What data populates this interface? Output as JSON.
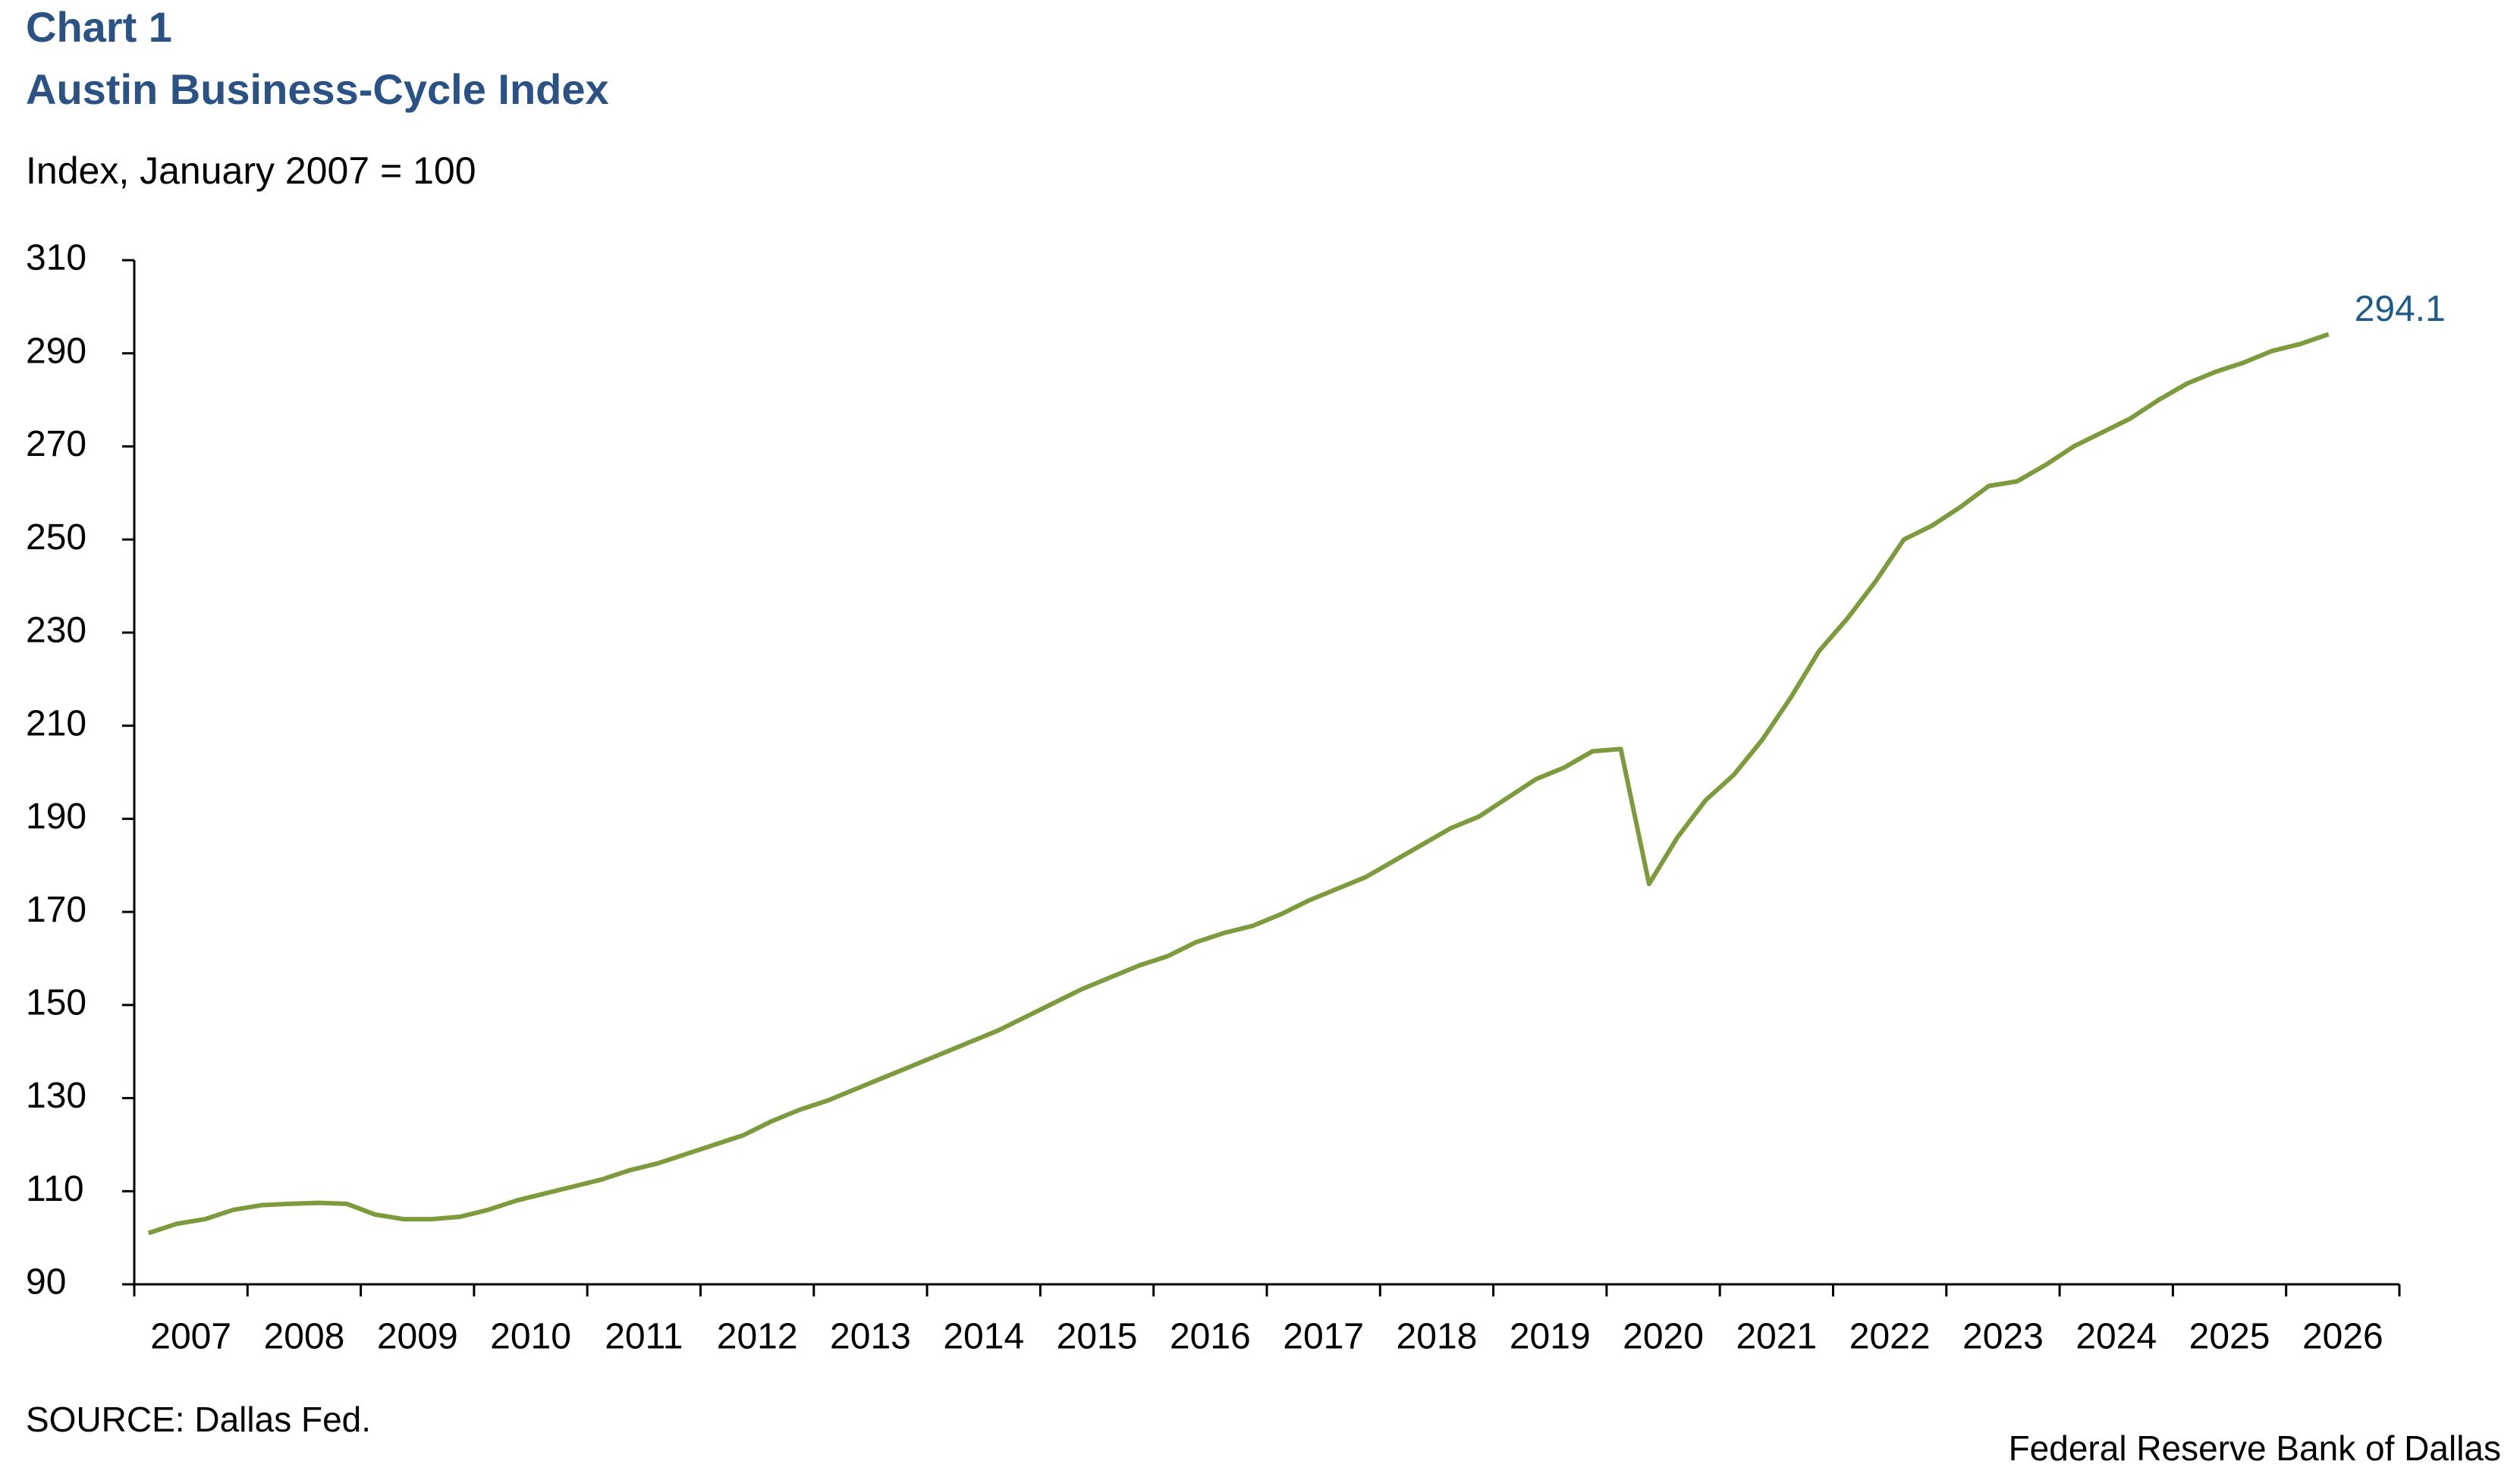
{
  "chart_data": {
    "type": "line",
    "title": "Chart 1",
    "subtitle": "Austin Business-Cycle Index",
    "y_label": "Index, January 2007 = 100",
    "source": "SOURCE: Dallas Fed.",
    "credit": "Federal Reserve Bank of Dallas",
    "categories": [
      "2007",
      null,
      null,
      null,
      "2008",
      null,
      null,
      null,
      "2009",
      null,
      null,
      null,
      "2010",
      null,
      null,
      null,
      "2011",
      null,
      null,
      null,
      "2012",
      null,
      null,
      null,
      "2013",
      null,
      null,
      null,
      "2014",
      null,
      null,
      null,
      "2015",
      null,
      null,
      null,
      "2016",
      null,
      null,
      null,
      "2017",
      null,
      null,
      null,
      "2018",
      null,
      null,
      null,
      "2019",
      null,
      null,
      null,
      "2020",
      null,
      null,
      null,
      "2021",
      null,
      null,
      null,
      "2022",
      null,
      null,
      null,
      "2023",
      null,
      null,
      null,
      "2024",
      null,
      null,
      null,
      "2025",
      null,
      null,
      null,
      "2026",
      null
    ],
    "values": [
      101,
      103,
      104,
      106,
      107,
      107.3,
      107.5,
      107.3,
      105,
      104,
      104,
      104.5,
      106,
      108,
      109.5,
      111,
      112.5,
      114.5,
      116,
      118,
      120,
      122,
      125,
      127.5,
      129.5,
      132,
      134.5,
      137,
      139.5,
      142,
      144.5,
      147.5,
      150.5,
      153.5,
      156,
      158.5,
      160.5,
      163.5,
      165.5,
      167,
      169.5,
      172.5,
      175,
      177.5,
      181,
      184.5,
      188,
      190.5,
      194.5,
      198.5,
      201,
      204.5,
      205,
      176,
      186,
      194,
      199.5,
      207,
      216,
      226,
      233,
      241,
      250,
      253,
      257,
      261.5,
      262.5,
      266,
      270,
      273,
      276,
      280,
      283.5,
      286,
      288,
      290.5,
      292,
      294.1
    ],
    "color": "#7d9a3c",
    "label_color": "#1f5a8c",
    "title_color": "#2a5285",
    "ylim": [
      90,
      310
    ],
    "yticks": [
      90,
      110,
      130,
      150,
      170,
      190,
      210,
      230,
      250,
      270,
      290,
      310
    ],
    "grid": false
  }
}
